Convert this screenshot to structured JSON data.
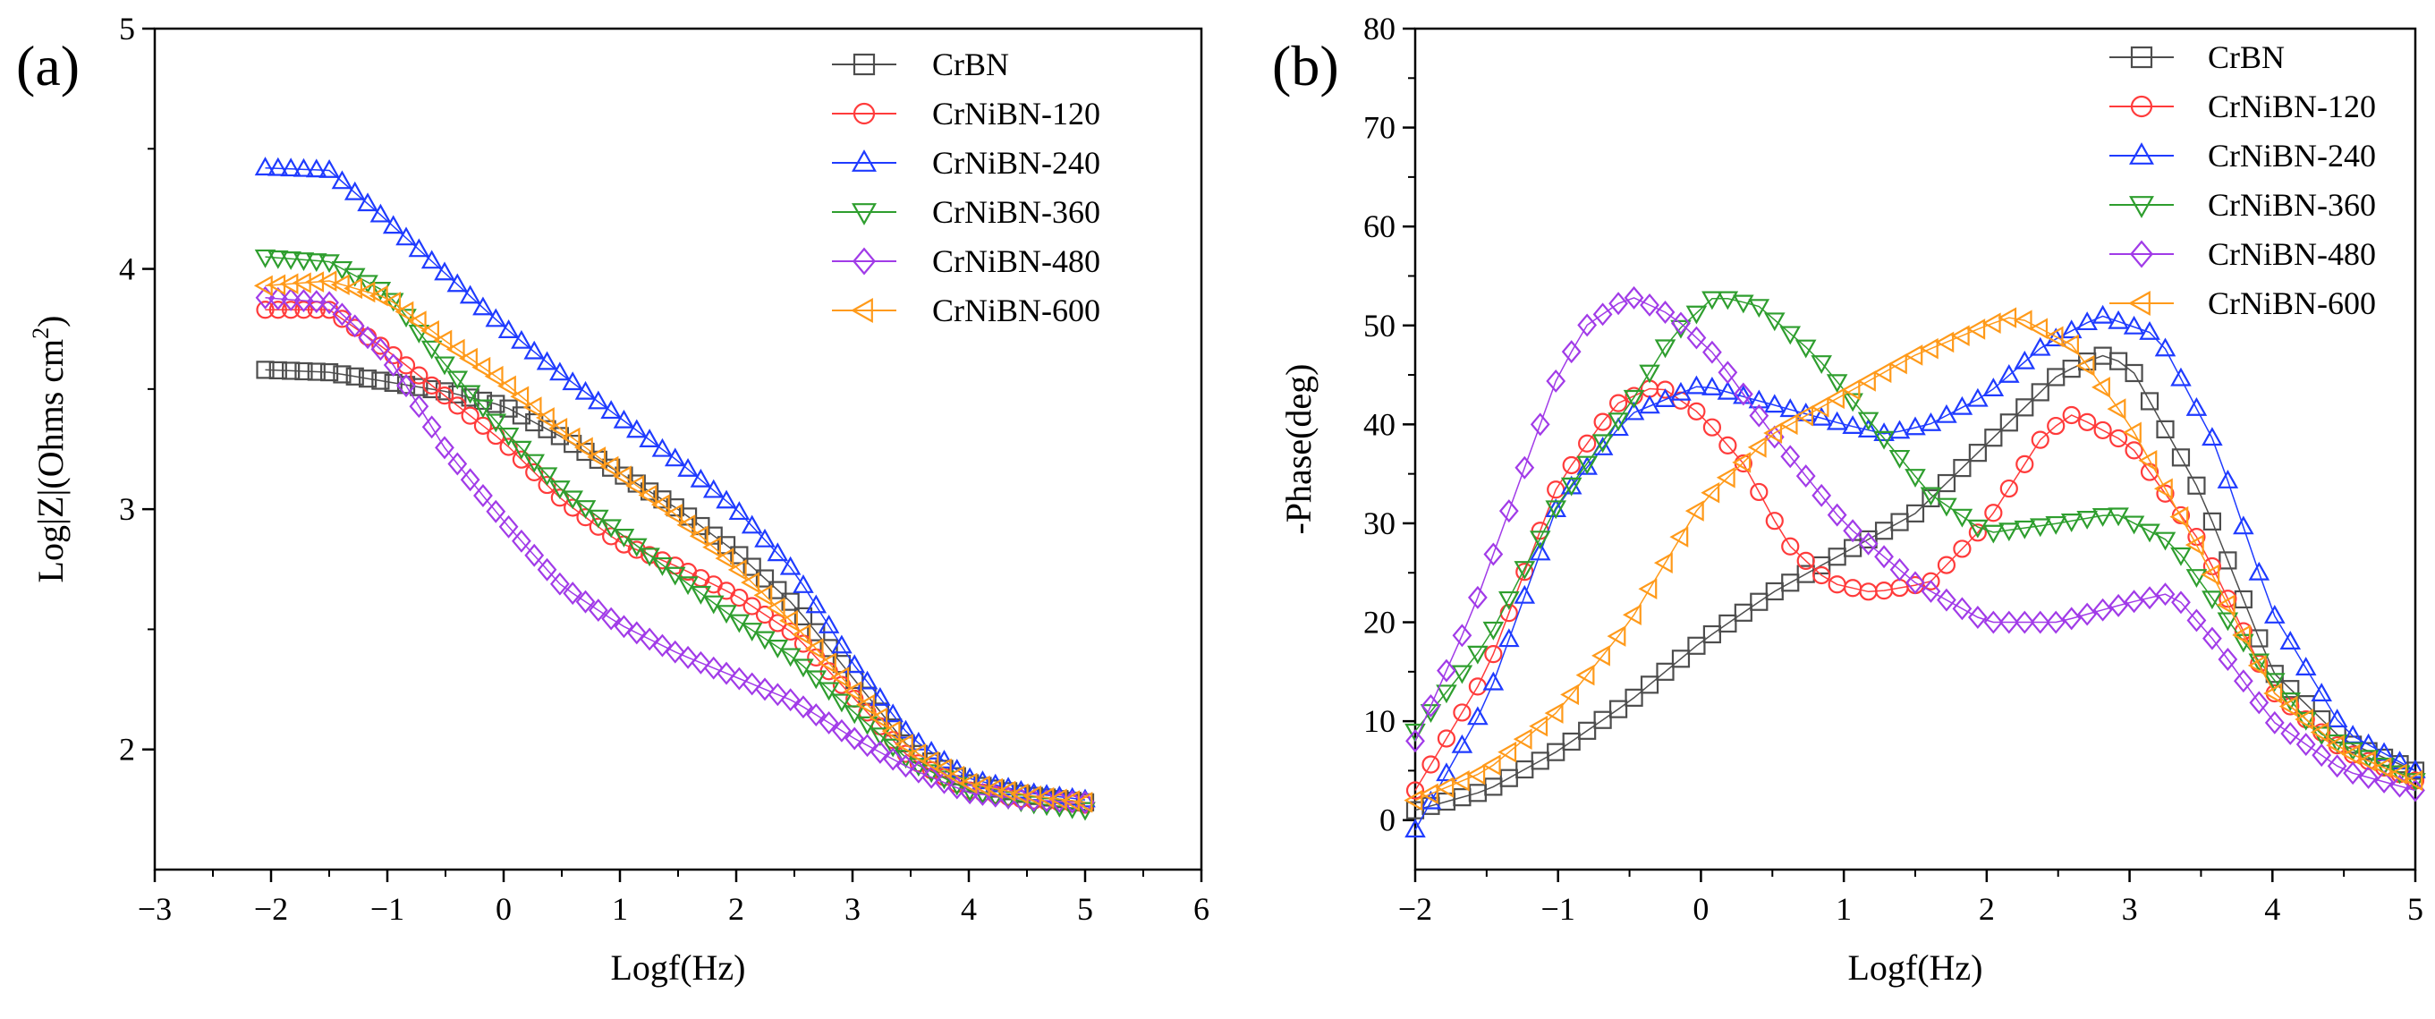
{
  "chart_data": [
    {
      "type": "scatter",
      "panel_label": "(a)",
      "title": "",
      "xlabel": "Logf(Hz)",
      "ylabel_main": "Log|Z|(Ohms cm",
      "ylabel_sup": "2",
      "ylabel_end": ")",
      "xlim": [
        -3,
        6
      ],
      "ylim": [
        1.5,
        5
      ],
      "xticks": [
        -3,
        -2,
        -1,
        0,
        1,
        2,
        3,
        4,
        5,
        6
      ],
      "yticks": [
        2,
        3,
        4,
        5
      ],
      "legend_position": "top-right",
      "series": [
        {
          "name": "CrBN",
          "color": "#4d4d4d",
          "marker": "square",
          "points": [
            [
              -2.05,
              3.58
            ],
            [
              -1.5,
              3.57
            ],
            [
              -1,
              3.53
            ],
            [
              -0.5,
              3.49
            ],
            [
              0,
              3.43
            ],
            [
              0.5,
              3.3
            ],
            [
              1,
              3.15
            ],
            [
              1.5,
              3.0
            ],
            [
              2,
              2.82
            ],
            [
              2.5,
              2.6
            ],
            [
              3,
              2.3
            ],
            [
              3.5,
              2.0
            ],
            [
              4,
              1.86
            ],
            [
              4.5,
              1.81
            ],
            [
              5,
              1.78
            ]
          ]
        },
        {
          "name": "CrNiBN-120",
          "color": "#ff3b3b",
          "marker": "circle",
          "points": [
            [
              -2.05,
              3.83
            ],
            [
              -1.5,
              3.83
            ],
            [
              -1,
              3.66
            ],
            [
              -0.5,
              3.47
            ],
            [
              0,
              3.28
            ],
            [
              0.5,
              3.04
            ],
            [
              1,
              2.86
            ],
            [
              1.5,
              2.76
            ],
            [
              2,
              2.64
            ],
            [
              2.5,
              2.48
            ],
            [
              3,
              2.22
            ],
            [
              3.5,
              1.96
            ],
            [
              4,
              1.83
            ],
            [
              4.5,
              1.79
            ],
            [
              5,
              1.77
            ]
          ]
        },
        {
          "name": "CrNiBN-240",
          "color": "#1f3bff",
          "marker": "triangle-up",
          "points": [
            [
              -2.05,
              4.42
            ],
            [
              -1.5,
              4.41
            ],
            [
              -1,
              4.2
            ],
            [
              -0.5,
              3.98
            ],
            [
              0,
              3.76
            ],
            [
              0.5,
              3.56
            ],
            [
              1,
              3.38
            ],
            [
              1.5,
              3.2
            ],
            [
              2,
              3.0
            ],
            [
              2.5,
              2.74
            ],
            [
              3,
              2.36
            ],
            [
              3.5,
              2.05
            ],
            [
              4,
              1.88
            ],
            [
              4.5,
              1.82
            ],
            [
              5,
              1.79
            ]
          ]
        },
        {
          "name": "CrNiBN-360",
          "color": "#2e9e2e",
          "marker": "triangle-down",
          "points": [
            [
              -2.05,
              4.05
            ],
            [
              -1.5,
              4.03
            ],
            [
              -1,
              3.9
            ],
            [
              -0.5,
              3.6
            ],
            [
              0,
              3.33
            ],
            [
              0.5,
              3.08
            ],
            [
              1,
              2.9
            ],
            [
              1.5,
              2.72
            ],
            [
              2,
              2.54
            ],
            [
              2.5,
              2.38
            ],
            [
              3,
              2.16
            ],
            [
              3.5,
              1.95
            ],
            [
              4,
              1.83
            ],
            [
              4.5,
              1.78
            ],
            [
              5,
              1.75
            ]
          ]
        },
        {
          "name": "CrNiBN-480",
          "color": "#a13be8",
          "marker": "diamond",
          "points": [
            [
              -2.05,
              3.88
            ],
            [
              -1.5,
              3.86
            ],
            [
              -1,
              3.64
            ],
            [
              -0.5,
              3.25
            ],
            [
              0,
              2.95
            ],
            [
              0.5,
              2.68
            ],
            [
              1,
              2.52
            ],
            [
              1.5,
              2.4
            ],
            [
              2,
              2.3
            ],
            [
              2.5,
              2.2
            ],
            [
              3,
              2.05
            ],
            [
              3.5,
              1.92
            ],
            [
              4,
              1.82
            ],
            [
              4.5,
              1.79
            ],
            [
              5,
              1.78
            ]
          ]
        },
        {
          "name": "CrNiBN-600",
          "color": "#ff9a1a",
          "marker": "triangle-left",
          "points": [
            [
              -2.05,
              3.93
            ],
            [
              -1.5,
              3.95
            ],
            [
              -1,
              3.88
            ],
            [
              -0.5,
              3.7
            ],
            [
              0,
              3.53
            ],
            [
              0.5,
              3.33
            ],
            [
              1,
              3.15
            ],
            [
              1.5,
              2.97
            ],
            [
              2,
              2.76
            ],
            [
              2.5,
              2.52
            ],
            [
              3,
              2.25
            ],
            [
              3.5,
              2.0
            ],
            [
              4,
              1.86
            ],
            [
              4.5,
              1.81
            ],
            [
              5,
              1.78
            ]
          ]
        }
      ]
    },
    {
      "type": "scatter",
      "panel_label": "(b)",
      "title": "",
      "xlabel": "Logf(Hz)",
      "ylabel_main": "-Phase(deg)",
      "xlim": [
        -2,
        5
      ],
      "ylim": [
        -5,
        80
      ],
      "xticks": [
        -2,
        -1,
        0,
        1,
        2,
        3,
        4,
        5
      ],
      "yticks": [
        0,
        10,
        20,
        30,
        40,
        50,
        60,
        70,
        80
      ],
      "legend_position": "top-right",
      "series": [
        {
          "name": "CrBN",
          "color": "#4d4d4d",
          "marker": "square",
          "points": [
            [
              -2,
              1
            ],
            [
              -1.5,
              3
            ],
            [
              -1,
              7
            ],
            [
              -0.5,
              12
            ],
            [
              0,
              18
            ],
            [
              0.5,
              23
            ],
            [
              1,
              27
            ],
            [
              1.5,
              31
            ],
            [
              2,
              38
            ],
            [
              2.5,
              45
            ],
            [
              2.8,
              47
            ],
            [
              3,
              46
            ],
            [
              3.5,
              33
            ],
            [
              4,
              15
            ],
            [
              4.5,
              8
            ],
            [
              5,
              5
            ]
          ]
        },
        {
          "name": "CrNiBN-120",
          "color": "#ff3b3b",
          "marker": "circle",
          "points": [
            [
              -2,
              3
            ],
            [
              -1.5,
              15
            ],
            [
              -1,
              34
            ],
            [
              -0.6,
              42
            ],
            [
              -0.3,
              44
            ],
            [
              0,
              41
            ],
            [
              0.3,
              36
            ],
            [
              0.6,
              28
            ],
            [
              0.9,
              24
            ],
            [
              1.2,
              23
            ],
            [
              1.6,
              24
            ],
            [
              2,
              30
            ],
            [
              2.4,
              39
            ],
            [
              2.6,
              41
            ],
            [
              3,
              38
            ],
            [
              3.5,
              28
            ],
            [
              4,
              13
            ],
            [
              4.5,
              7
            ],
            [
              5,
              4
            ]
          ]
        },
        {
          "name": "CrNiBN-240",
          "color": "#1f3bff",
          "marker": "triangle-up",
          "points": [
            [
              -2,
              -1
            ],
            [
              -1.5,
              12
            ],
            [
              -1,
              32
            ],
            [
              -0.5,
              41
            ],
            [
              0,
              44
            ],
            [
              0.5,
              42
            ],
            [
              1,
              40
            ],
            [
              1.3,
              39
            ],
            [
              1.6,
              40
            ],
            [
              2,
              43
            ],
            [
              2.4,
              48
            ],
            [
              2.8,
              51
            ],
            [
              3.2,
              49
            ],
            [
              3.6,
              38
            ],
            [
              4,
              21
            ],
            [
              4.5,
              9
            ],
            [
              5,
              5
            ]
          ]
        },
        {
          "name": "CrNiBN-360",
          "color": "#2e9e2e",
          "marker": "triangle-down",
          "points": [
            [
              -2,
              9
            ],
            [
              -1.5,
              18
            ],
            [
              -1,
              32
            ],
            [
              -0.5,
              42
            ],
            [
              -0.2,
              49
            ],
            [
              0.1,
              53
            ],
            [
              0.4,
              52
            ],
            [
              0.8,
              47
            ],
            [
              1.2,
              40
            ],
            [
              1.6,
              33
            ],
            [
              2,
              29
            ],
            [
              2.5,
              30
            ],
            [
              2.9,
              31
            ],
            [
              3.3,
              28
            ],
            [
              3.8,
              18
            ],
            [
              4.3,
              9
            ],
            [
              5,
              4
            ]
          ]
        },
        {
          "name": "CrNiBN-480",
          "color": "#a13be8",
          "marker": "diamond",
          "points": [
            [
              -2,
              8
            ],
            [
              -1.6,
              21
            ],
            [
              -1.3,
              33
            ],
            [
              -1,
              45
            ],
            [
              -0.8,
              50
            ],
            [
              -0.5,
              53
            ],
            [
              -0.2,
              51
            ],
            [
              0.1,
              47
            ],
            [
              0.5,
              39
            ],
            [
              1,
              30
            ],
            [
              1.5,
              24
            ],
            [
              2,
              20
            ],
            [
              2.5,
              20
            ],
            [
              3,
              22
            ],
            [
              3.3,
              23
            ],
            [
              3.6,
              18
            ],
            [
              4,
              10
            ],
            [
              4.5,
              5
            ],
            [
              5,
              3
            ]
          ]
        },
        {
          "name": "CrNiBN-600",
          "color": "#ff9a1a",
          "marker": "triangle-left",
          "points": [
            [
              -2,
              2
            ],
            [
              -1.5,
              5
            ],
            [
              -1,
              11
            ],
            [
              -0.5,
              20
            ],
            [
              0,
              32
            ],
            [
              0.5,
              39
            ],
            [
              1,
              43
            ],
            [
              1.5,
              47
            ],
            [
              2,
              50
            ],
            [
              2.2,
              51
            ],
            [
              2.6,
              48
            ],
            [
              3,
              40
            ],
            [
              3.5,
              27
            ],
            [
              4,
              13
            ],
            [
              4.5,
              7
            ],
            [
              5,
              4
            ]
          ]
        }
      ]
    }
  ]
}
